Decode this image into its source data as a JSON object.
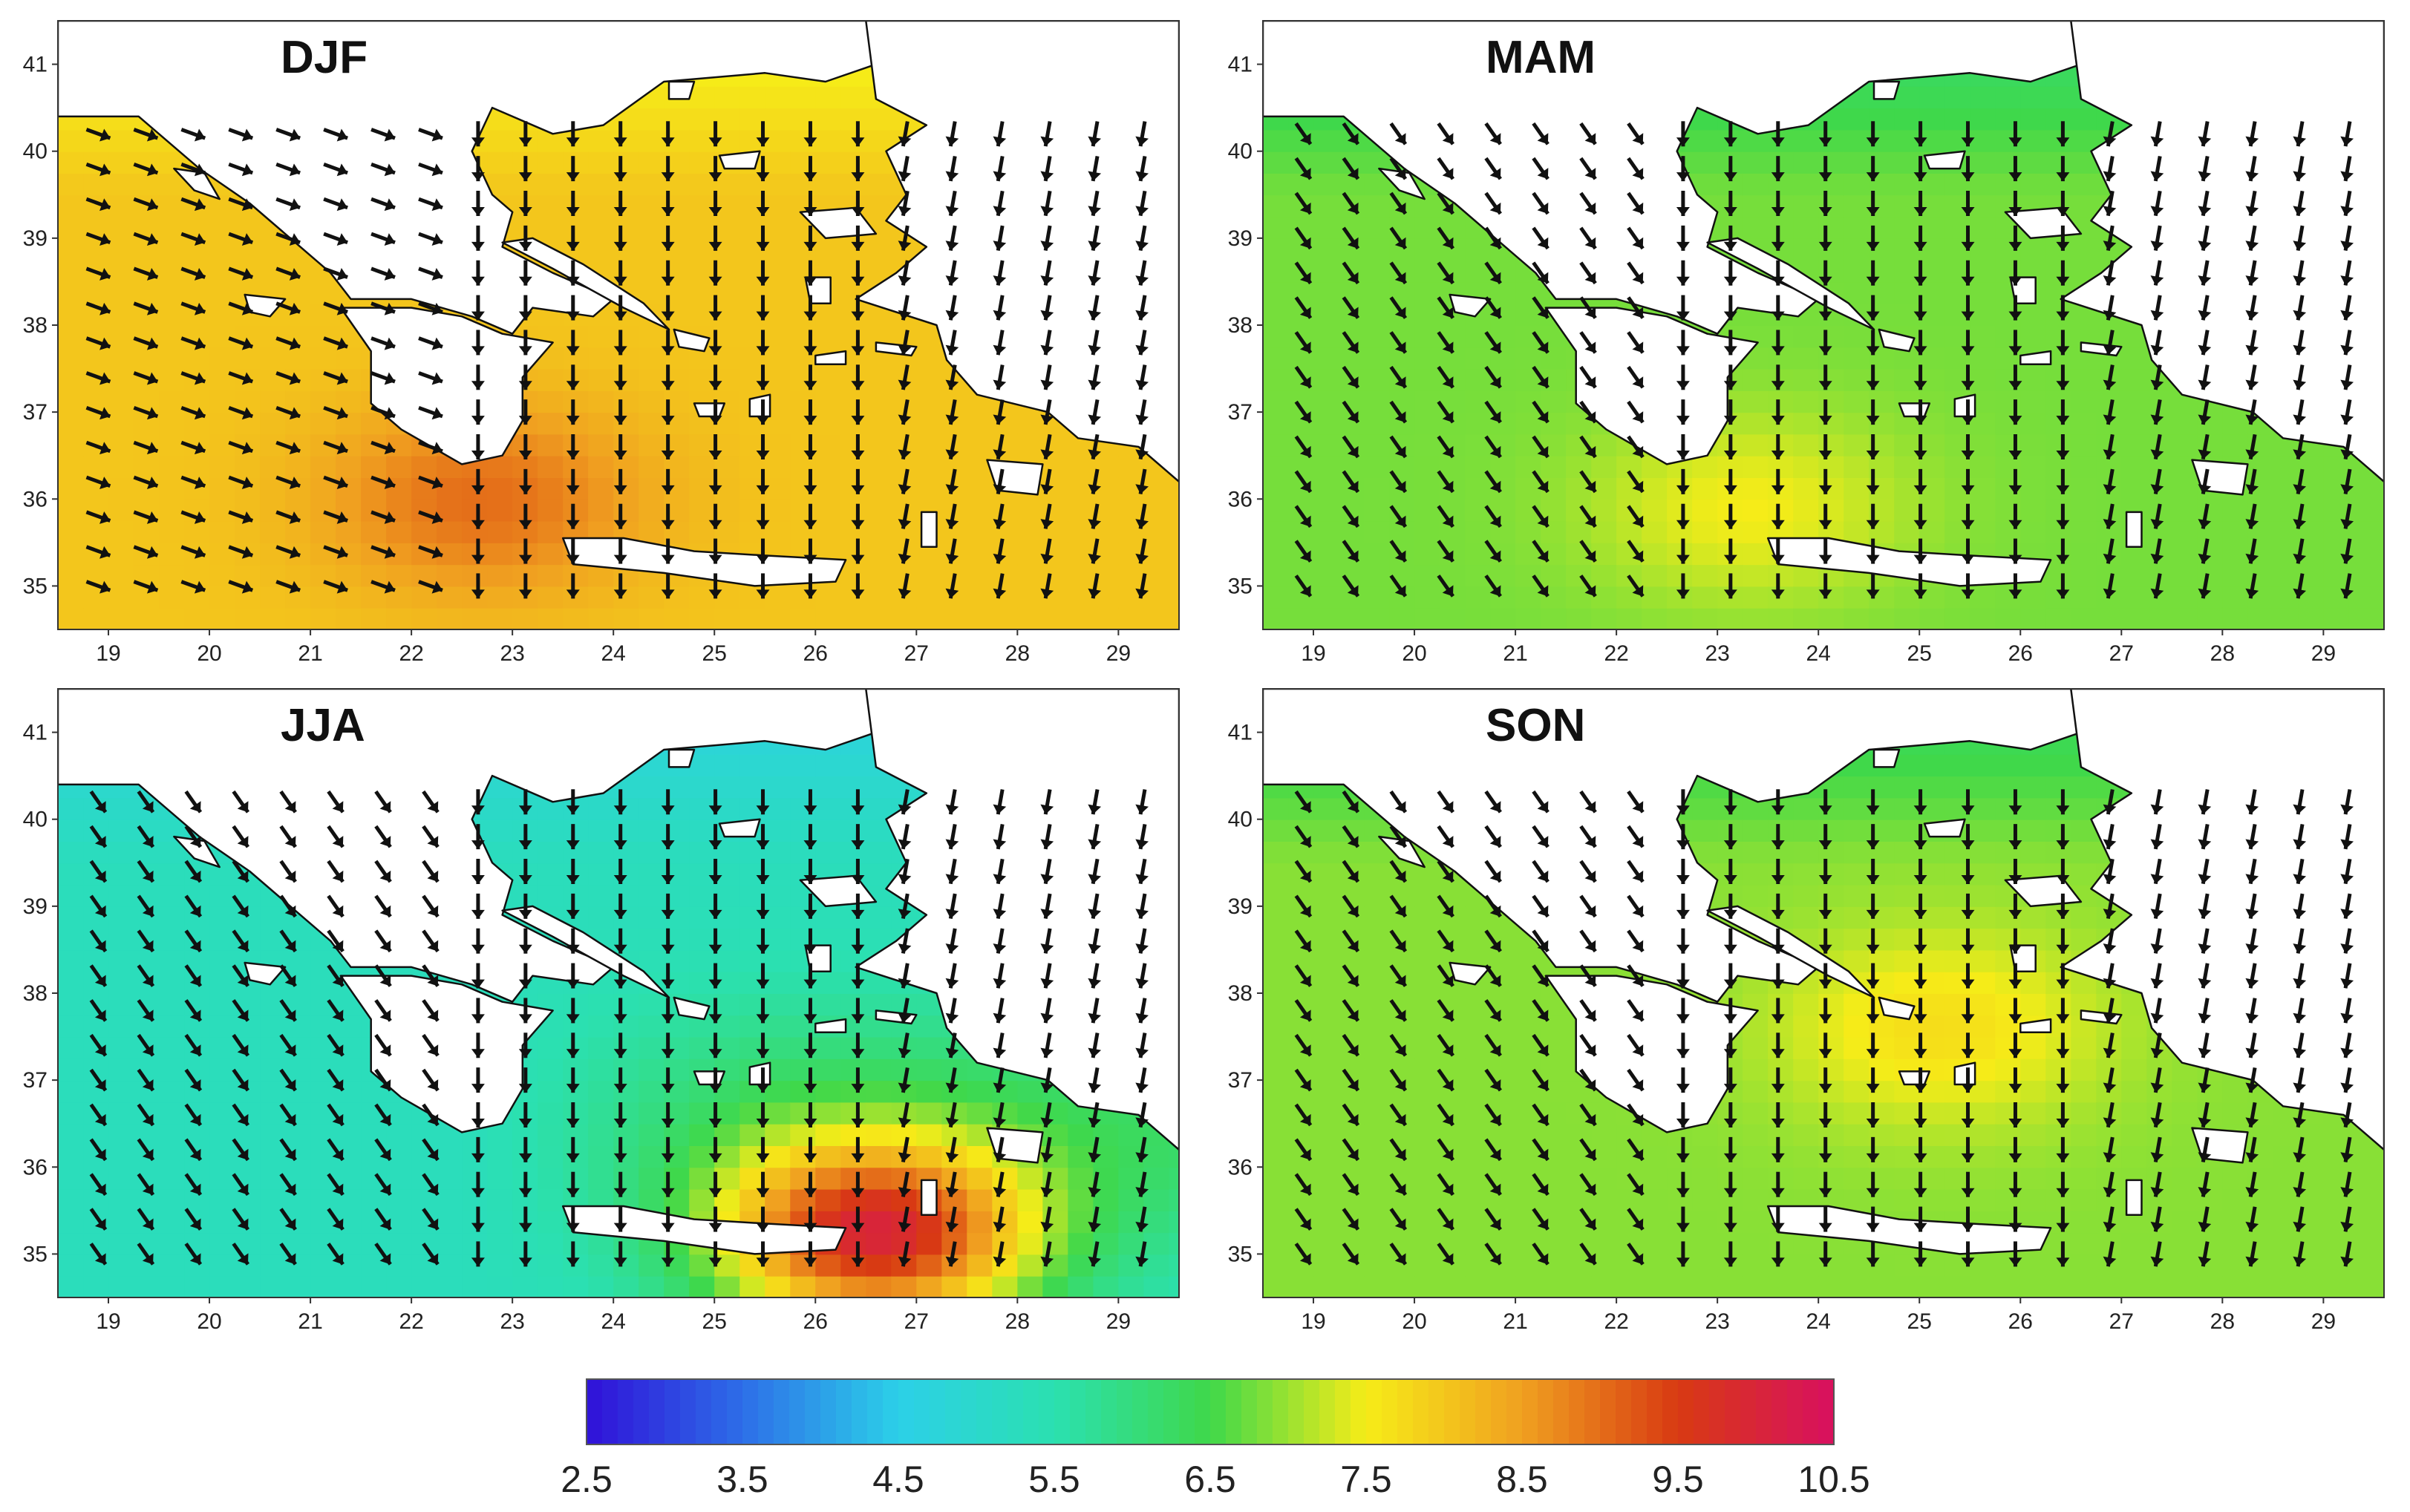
{
  "figure": {
    "panels": [
      {
        "season": "DJF",
        "mean_speed": 8.0,
        "hotspot": {
          "lon": 22.7,
          "lat": 36.0,
          "value": 9.0
        }
      },
      {
        "season": "MAM",
        "mean_speed": 6.8,
        "hotspot": {
          "lon": 23.3,
          "lat": 35.9,
          "value": 7.5
        }
      },
      {
        "season": "JJA",
        "mean_speed": 5.3,
        "hotspot": {
          "lon": 26.6,
          "lat": 35.2,
          "value": 9.6
        }
      },
      {
        "season": "SON",
        "mean_speed": 6.9,
        "hotspot": {
          "lon": 25.2,
          "lat": 37.6,
          "value": 7.7
        }
      }
    ],
    "x_ticks": [
      "19",
      "20",
      "21",
      "22",
      "23",
      "24",
      "25",
      "26",
      "27",
      "28",
      "29"
    ],
    "y_ticks": [
      "35",
      "36",
      "37",
      "38",
      "39",
      "40",
      "41"
    ],
    "lon_range": [
      18.5,
      29.6
    ],
    "lat_range": [
      34.5,
      41.5
    ],
    "colorbar": {
      "ticks": [
        "2.5",
        "3.5",
        "4.5",
        "5.5",
        "6.5",
        "7.5",
        "8.5",
        "9.5",
        "10.5"
      ],
      "range": [
        2.5,
        10.5
      ],
      "colors": [
        "#3010d8",
        "#2d6ee8",
        "#2cd0e8",
        "#2be0b0",
        "#3fd84a",
        "#f6ec18",
        "#f0a020",
        "#d83a12",
        "#d81060"
      ]
    },
    "wind_direction": "N to NNW (arrows pointing south/southeast)"
  }
}
